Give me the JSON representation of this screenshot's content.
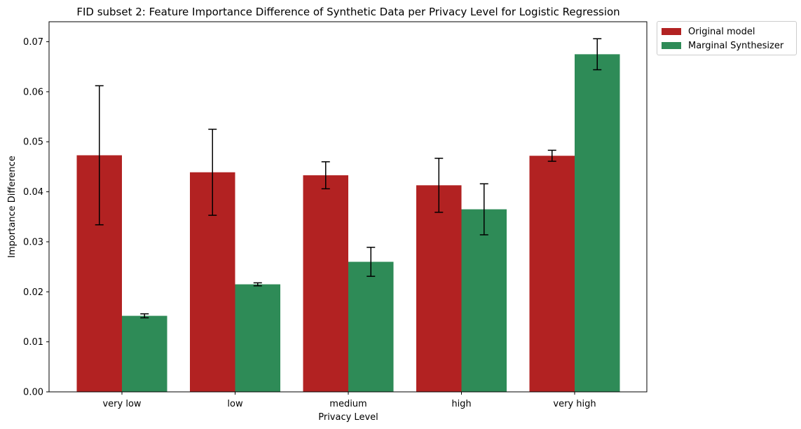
{
  "chart_data": {
    "type": "bar",
    "title": "FID subset 2: Feature Importance Difference of Synthetic Data per Privacy Level for Logistic Regression",
    "xlabel": "Privacy Level",
    "ylabel": "Importance Difference",
    "categories": [
      "very low",
      "low",
      "medium",
      "high",
      "very high"
    ],
    "ylim": [
      0,
      0.074
    ],
    "yticks": [
      0.0,
      0.01,
      0.02,
      0.03,
      0.04,
      0.05,
      0.06,
      0.07
    ],
    "ytick_labels": [
      "0.00",
      "0.01",
      "0.02",
      "0.03",
      "0.04",
      "0.05",
      "0.06",
      "0.07"
    ],
    "grid": false,
    "legend_position": "outside-top-right",
    "series": [
      {
        "name": "Original model",
        "color": "#b22222",
        "values": [
          0.0473,
          0.0439,
          0.0433,
          0.0413,
          0.0472
        ],
        "errors": [
          0.0139,
          0.0086,
          0.0027,
          0.0054,
          0.0011
        ]
      },
      {
        "name": "Marginal Synthesizer",
        "color": "#2e8b57",
        "values": [
          0.0152,
          0.0215,
          0.026,
          0.0365,
          0.0675
        ],
        "errors": [
          0.0004,
          0.0003,
          0.0029,
          0.0051,
          0.0031
        ]
      }
    ]
  }
}
